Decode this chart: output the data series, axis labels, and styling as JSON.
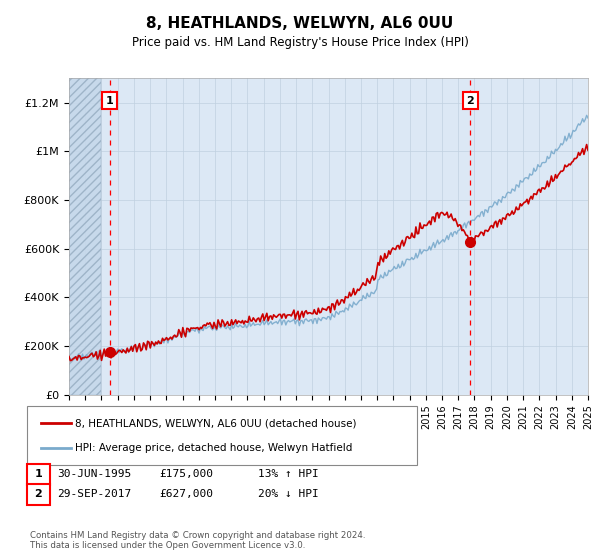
{
  "title": "8, HEATHLANDS, WELWYN, AL6 0UU",
  "subtitle": "Price paid vs. HM Land Registry's House Price Index (HPI)",
  "ylim": [
    0,
    1300000
  ],
  "yticks": [
    0,
    200000,
    400000,
    600000,
    800000,
    1000000,
    1200000
  ],
  "ytick_labels": [
    "£0",
    "£200K",
    "£400K",
    "£600K",
    "£800K",
    "£1M",
    "£1.2M"
  ],
  "sale1_year": 1995.5,
  "sale1_price": 175000,
  "sale2_year": 2017.75,
  "sale2_price": 627000,
  "line1_color": "#cc0000",
  "line2_color": "#7aaacc",
  "legend1": "8, HEATHLANDS, WELWYN, AL6 0UU (detached house)",
  "legend2": "HPI: Average price, detached house, Welwyn Hatfield",
  "footnote": "Contains HM Land Registry data © Crown copyright and database right 2024.\nThis data is licensed under the Open Government Licence v3.0.",
  "xstart": 1993,
  "xend": 2025,
  "bg_color": "#dce8f5",
  "hatch_color": "#c5d8ea",
  "grid_color": "#c0d0e0"
}
